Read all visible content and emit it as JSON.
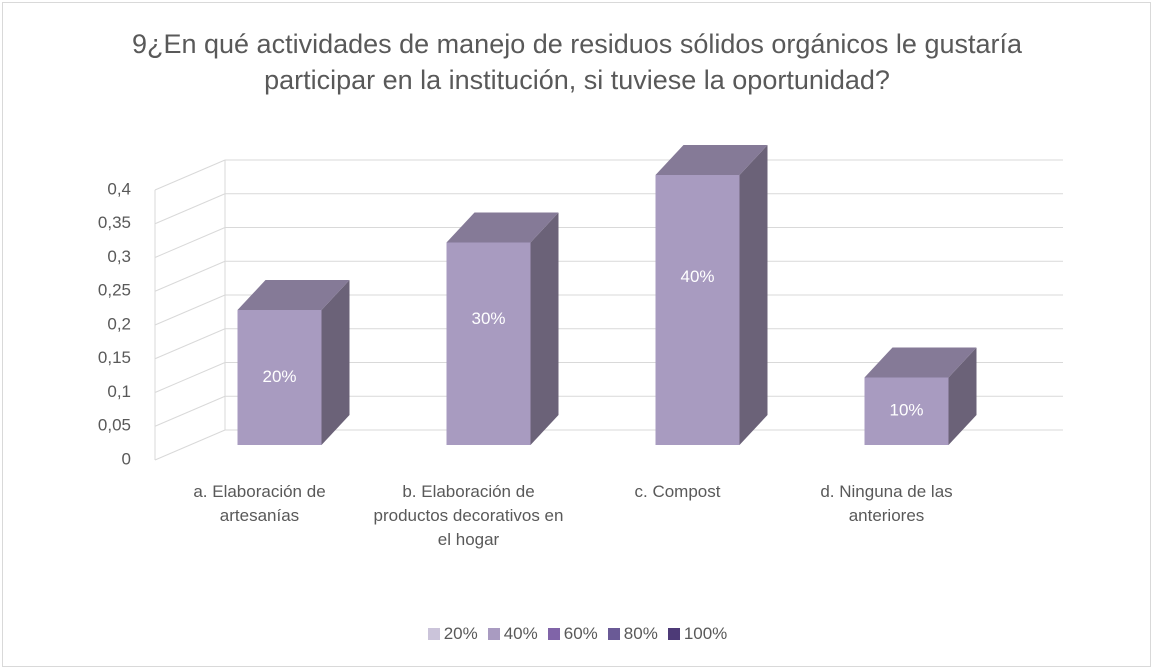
{
  "chart_data": {
    "type": "bar3d",
    "title": "9¿En qué actividades de manejo de residuos sólidos orgánicos le gustaría participar en la institución, si tuviese la oportunidad?",
    "categories": [
      "a. Elaboración de artesanías",
      "b. Elaboración de productos decorativos en el hogar",
      "c. Compost",
      "d. Ninguna de las anteriores"
    ],
    "values": [
      0.2,
      0.3,
      0.4,
      0.1
    ],
    "value_labels": [
      "20%",
      "30%",
      "40%",
      "10%"
    ],
    "color": "#a89bc0",
    "ylim": [
      0,
      0.4
    ],
    "yticks": [
      0,
      {
        "value": 0.05,
        "label": "0,05"
      },
      {
        "value": 0.1,
        "label": "0,1"
      },
      {
        "value": 0.15,
        "label": "0,15"
      },
      {
        "value": 0.2,
        "label": "0,2"
      },
      {
        "value": 0.25,
        "label": "0,25"
      },
      {
        "value": 0.3,
        "label": "0,3"
      },
      {
        "value": 0.35,
        "label": "0,35"
      },
      {
        "value": 0.4,
        "label": "0,4"
      }
    ],
    "grid": true,
    "legend": [
      {
        "name": "20%",
        "color": "#cbc4da"
      },
      {
        "name": "40%",
        "color": "#a99bc1"
      },
      {
        "name": "60%",
        "color": "#8064a8"
      },
      {
        "name": "80%",
        "color": "#6a5a96"
      },
      {
        "name": "100%",
        "color": "#4d3a77"
      }
    ]
  }
}
